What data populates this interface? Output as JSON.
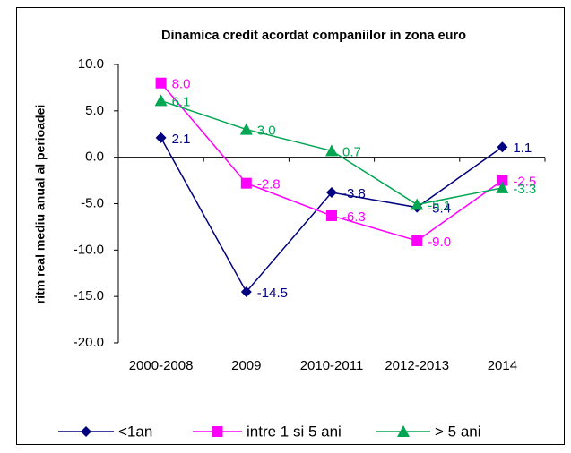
{
  "chart_data": {
    "type": "line",
    "title": "Dinamica credit acordat companiilor in zona euro",
    "y_label": "ritm real mediu anual al perioadei",
    "categories": [
      "2000-2008",
      "2009",
      "2010-2011",
      "2012-2013",
      "2014"
    ],
    "series": [
      {
        "name": "<1an",
        "color": "#000080",
        "marker": "diamond",
        "values": [
          2.1,
          -14.5,
          -3.8,
          -5.4,
          1.1
        ],
        "value_labels": [
          "2.1",
          "-14.5",
          "-3.8",
          "-5.4",
          "1.1"
        ]
      },
      {
        "name": "intre 1 si 5 ani",
        "color": "#ff00ff",
        "marker": "square",
        "values": [
          8.0,
          -2.8,
          -6.3,
          -9.0,
          -2.5
        ],
        "value_labels": [
          "8.0",
          "-2.8",
          "-6.3",
          "-9.0",
          "-2.5"
        ]
      },
      {
        "name": "> 5 ani",
        "color": "#00a651",
        "marker": "triangle",
        "values": [
          6.1,
          3.0,
          0.7,
          -5.1,
          -3.3
        ],
        "value_labels": [
          "6.1",
          "3.0",
          "0.7",
          "-5.1",
          "-3.3"
        ]
      }
    ],
    "ylim": [
      -20,
      10
    ],
    "yticks": [
      {
        "value": -20,
        "label": "-20.0"
      },
      {
        "value": -15,
        "label": "-15.0"
      },
      {
        "value": -10,
        "label": "-10.0"
      },
      {
        "value": -5,
        "label": "-5.0"
      },
      {
        "value": 0,
        "label": "0.0"
      },
      {
        "value": 5,
        "label": "5.0"
      },
      {
        "value": 10,
        "label": "10.0"
      }
    ],
    "grid": false,
    "legend": "bottom"
  }
}
